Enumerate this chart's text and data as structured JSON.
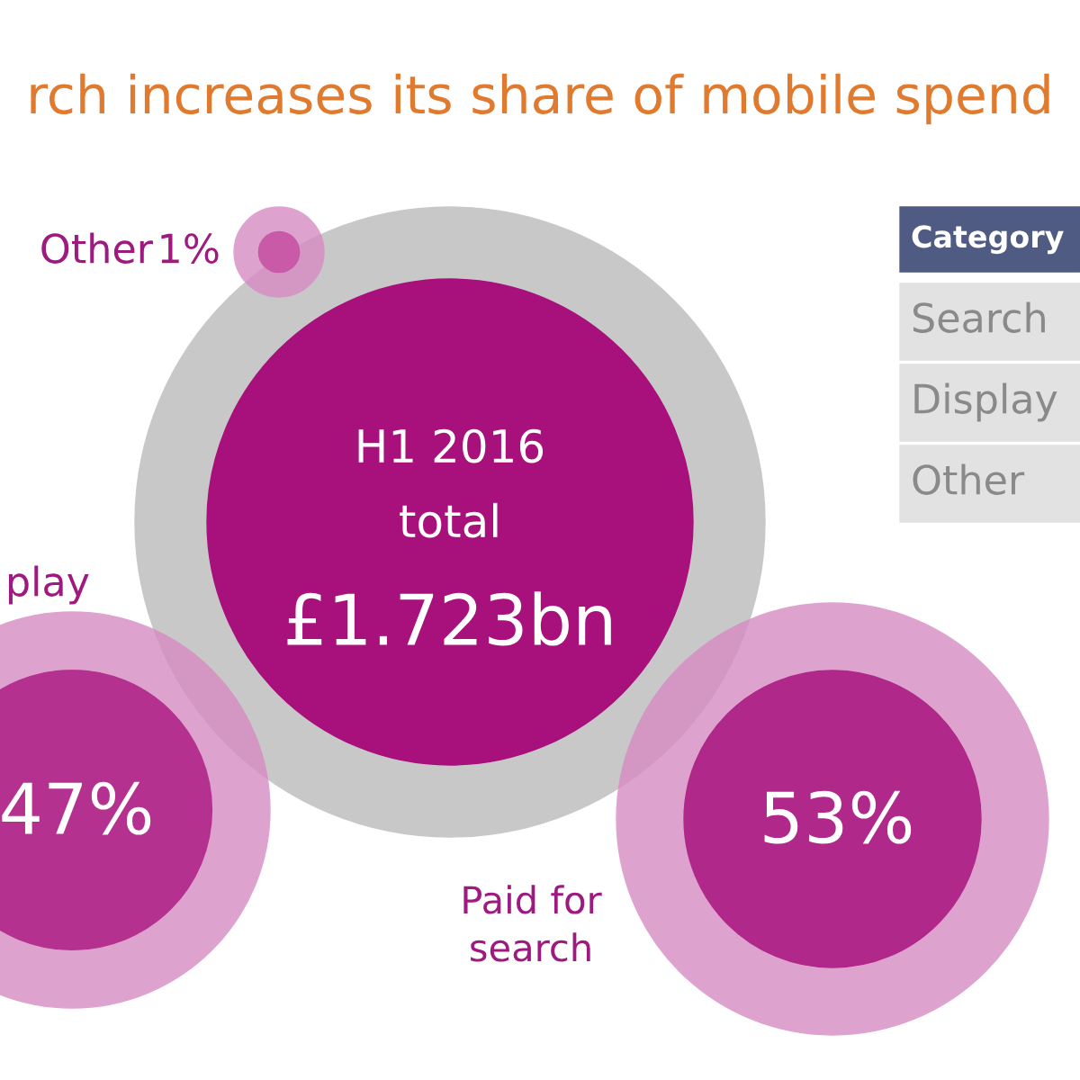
{
  "chart_data": {
    "type": "other",
    "title": "rch increases its share of mobile spend",
    "categories": [
      "Other",
      "play",
      "Paid for search"
    ],
    "values": [
      1,
      47,
      53
    ],
    "value_labels": [
      "1%",
      "47%",
      "53%"
    ],
    "colors": [
      "#c85aa8",
      "#b5318f",
      "#b0288a"
    ],
    "annotations": [
      "H1 2016",
      "total",
      "£1.723bn",
      "Category",
      "Search",
      "Display",
      "Other"
    ]
  }
}
